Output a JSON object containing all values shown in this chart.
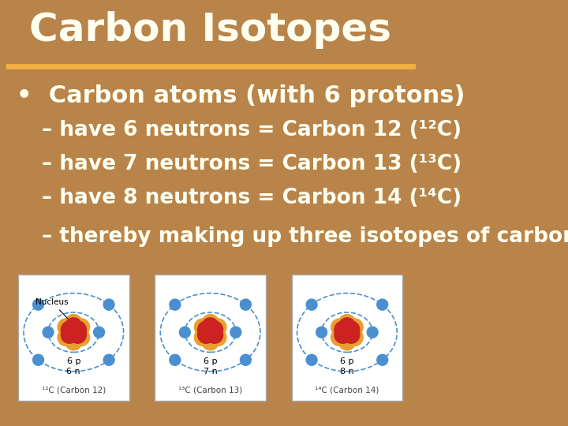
{
  "title": "Carbon Isotopes",
  "title_color": "#FFFFF0",
  "title_fontsize": 36,
  "separator_color": "#F0B040",
  "bg_color": "#B8844A",
  "bullet_text": "Carbon atoms (with 6 protons)",
  "bullet_color": "#FFFFF0",
  "bullet_fontsize": 22,
  "lines": [
    "– have 6 neutrons = Carbon 12 (¹²C)",
    "– have 7 neutrons = Carbon 13 (¹³C)",
    "– have 8 neutrons = Carbon 14 (¹⁴C)",
    "– thereby making up three isotopes of carbon."
  ],
  "lines_color": "#FFFFF0",
  "lines_fontsize": 19,
  "atom_labels": [
    "¹²C (Carbon 12)",
    "¹³C (Carbon 13)",
    "¹⁴C (Carbon 14)"
  ],
  "atom_protons": [
    "6 p",
    "6 p",
    "6 p"
  ],
  "atom_neutrons": [
    "6 n",
    "7 n",
    "8 n"
  ],
  "electron_color": "#4A90D0",
  "orbit_color": "#4A90D0",
  "proton_color": "#CC2222",
  "neutron_color": "#E8A030"
}
